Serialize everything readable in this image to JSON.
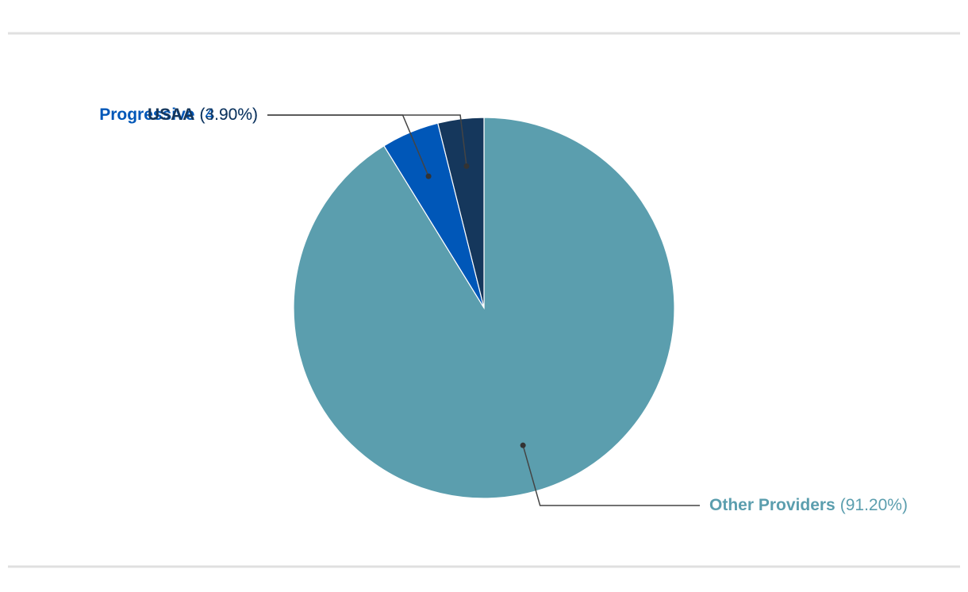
{
  "chart_data": {
    "type": "pie",
    "categories": [
      "Other Providers",
      "Progressive",
      "USAA"
    ],
    "values": [
      91.2,
      4.9,
      3.9
    ],
    "value_labels": [
      "(91.20%)",
      "(4.90%)",
      "(3.90%)"
    ],
    "colors": [
      "#5b9eae",
      "#0057b8",
      "#15375c"
    ]
  }
}
